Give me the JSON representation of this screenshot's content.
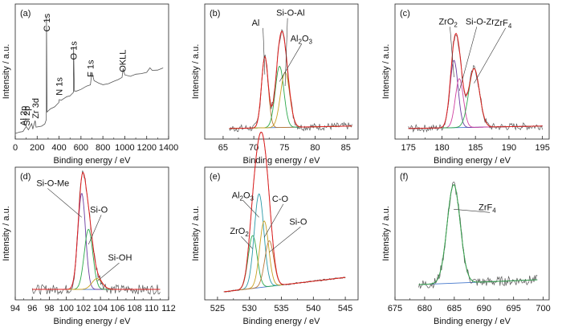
{
  "colors": {
    "axis": "#222222",
    "raw": "#555555",
    "envelope": "#e02020",
    "baseline": "#4477cc",
    "brown": "#b87838",
    "green": "#2aa84a",
    "olive": "#8a9a2a",
    "gold": "#c8a020",
    "purple": "#6a3aa0",
    "pink": "#d040a0",
    "teal": "#2a9aa8",
    "fit_green": "#3aa050"
  },
  "chart_data": [
    {
      "id": "a",
      "panel_label": "(a)",
      "type": "line",
      "xlabel": "Binding energy / eV",
      "ylabel": "Intensity / a.u.",
      "xlim": [
        0,
        1400
      ],
      "xticks": [
        "0",
        "200",
        "400",
        "600",
        "800",
        "1000",
        "1200",
        "1400"
      ],
      "yticks": [],
      "grid": false,
      "legend": "none",
      "series": [
        {
          "name": "",
          "style": "raw",
          "points": [
            [
              0,
              2
            ],
            [
              40,
              3
            ],
            [
              70,
              4
            ],
            [
              100,
              8
            ],
            [
              120,
              5
            ],
            [
              150,
              10
            ],
            [
              160,
              6
            ],
            [
              182,
              12
            ],
            [
              190,
              7
            ],
            [
              240,
              8
            ],
            [
              270,
              10
            ],
            [
              284,
              13
            ],
            [
              285,
              97
            ],
            [
              290,
              20
            ],
            [
              320,
              22
            ],
            [
              360,
              24
            ],
            [
              398,
              27
            ],
            [
              402,
              30
            ],
            [
              420,
              29
            ],
            [
              470,
              32
            ],
            [
              500,
              33
            ],
            [
              531,
              36
            ],
            [
              532,
              72
            ],
            [
              540,
              36
            ],
            [
              560,
              37
            ],
            [
              600,
              38
            ],
            [
              650,
              40
            ],
            [
              686,
              42
            ],
            [
              700,
              52
            ],
            [
              720,
              45
            ],
            [
              760,
              43
            ],
            [
              800,
              42
            ],
            [
              850,
              43
            ],
            [
              900,
              44
            ],
            [
              940,
              46
            ],
            [
              975,
              48
            ],
            [
              985,
              55
            ],
            [
              1000,
              50
            ],
            [
              1050,
              49
            ],
            [
              1100,
              50
            ],
            [
              1150,
              51
            ],
            [
              1200,
              52
            ],
            [
              1230,
              56
            ],
            [
              1250,
              53
            ],
            [
              1300,
              54
            ],
            [
              1350,
              55
            ]
          ]
        }
      ],
      "annotations": [
        {
          "text": "C 1s",
          "x": 285,
          "y": 85,
          "rotate": true
        },
        {
          "text": "O 1s",
          "x": 531,
          "y": 62,
          "rotate": true
        },
        {
          "text": "N 1s",
          "x": 400,
          "y": 33,
          "rotate": true
        },
        {
          "text": "F 1s",
          "x": 686,
          "y": 48,
          "rotate": true
        },
        {
          "text": "OKLL",
          "x": 980,
          "y": 52,
          "rotate": true
        },
        {
          "text": "Al 2p",
          "x": 74,
          "y": 8,
          "rotate": true
        },
        {
          "text": "Si 2p",
          "x": 102,
          "y": 8,
          "rotate": true
        },
        {
          "text": "Zr 3d",
          "x": 182,
          "y": 14,
          "rotate": true
        }
      ]
    },
    {
      "id": "b",
      "panel_label": "(b)",
      "type": "line",
      "xlabel": "Binding energy / eV",
      "ylabel": "Intensity / a.u.",
      "xlim": [
        62,
        87
      ],
      "xticks": [
        "65",
        "70",
        "75",
        "80",
        "85"
      ],
      "yticks": [],
      "grid": false,
      "legend": "none",
      "peaks": [
        {
          "name": "Al",
          "center": 71.8,
          "height": 58,
          "width": 0.55,
          "color": "#b87838"
        },
        {
          "name": "Al2O3",
          "center": 74.2,
          "height": 50,
          "width": 0.7,
          "color": "#2aa84a"
        },
        {
          "name": "Si-O-Al",
          "center": 75.1,
          "height": 45,
          "width": 0.75,
          "color": "#c8a020"
        }
      ],
      "background": {
        "x0": 66,
        "y0": 6,
        "x1": 86,
        "y1": 8
      },
      "noise": 3,
      "x_range": [
        66,
        86
      ],
      "annotations": [
        {
          "text": "Al",
          "x": 71.5,
          "y": 90,
          "sub": ""
        },
        {
          "text": "Si-O-Al",
          "x": 75.5,
          "y": 98,
          "sub": ""
        },
        {
          "text": "Al",
          "x": 77.8,
          "y": 77,
          "sub": "2",
          "rest": "O",
          "sub2": "3"
        }
      ]
    },
    {
      "id": "c",
      "panel_label": "(c)",
      "type": "line",
      "xlabel": "Binding energy / eV",
      "ylabel": "Intensity / a.u.",
      "xlim": [
        173,
        196
      ],
      "xticks": [
        "175",
        "180",
        "185",
        "190",
        "195"
      ],
      "yticks": [],
      "grid": false,
      "legend": "none",
      "peaks": [
        {
          "name": "ZrO2",
          "center": 181.8,
          "height": 55,
          "width": 0.6,
          "color": "#6a3aa0"
        },
        {
          "name": "Si-O-Zr",
          "center": 182.6,
          "height": 40,
          "width": 0.6,
          "color": "#d040a0"
        },
        {
          "name": "ZrF4",
          "center": 184.8,
          "height": 48,
          "width": 0.8,
          "color": "#2aa84a"
        }
      ],
      "background": {
        "x0": 175,
        "y0": 6,
        "x1": 195,
        "y1": 8
      },
      "noise": 3,
      "x_range": [
        175,
        195
      ],
      "annotations": [
        {
          "text": "ZrO",
          "x": 181.2,
          "y": 91,
          "sub": "2"
        },
        {
          "text": "Si-O-Zr",
          "x": 185.2,
          "y": 91,
          "sub": ""
        },
        {
          "text": "ZrF",
          "x": 189.5,
          "y": 90,
          "sub": "4"
        }
      ]
    },
    {
      "id": "d",
      "panel_label": "(d)",
      "type": "line",
      "xlabel": "Binding energy / eV",
      "ylabel": "Intensity / a.u.",
      "xlim": [
        94,
        112
      ],
      "xticks": [
        "94",
        "96",
        "98",
        "100",
        "102",
        "104",
        "106",
        "108",
        "110",
        "112"
      ],
      "yticks": [],
      "grid": false,
      "legend": "none",
      "peaks": [
        {
          "name": "Si-O-Me",
          "center": 101.8,
          "height": 80,
          "width": 0.45,
          "color": "#6a3aa0"
        },
        {
          "name": "Si-O",
          "center": 102.6,
          "height": 50,
          "width": 0.5,
          "color": "#2aa84a"
        },
        {
          "name": "Si-OH",
          "center": 103.6,
          "height": 9,
          "width": 0.6,
          "color": "#c8a020"
        }
      ],
      "background": {
        "x0": 96,
        "y0": 6,
        "x1": 111,
        "y1": 6
      },
      "noise": 4,
      "x_range": [
        96,
        111
      ],
      "annotations": [
        {
          "text": "Si-O-Me",
          "x": 97.8,
          "y": 92,
          "sub": ""
        },
        {
          "text": "Si-O",
          "x": 104.1,
          "y": 70,
          "sub": ""
        },
        {
          "text": "Si-OH",
          "x": 106.2,
          "y": 30,
          "sub": ""
        }
      ]
    },
    {
      "id": "e",
      "panel_label": "(e)",
      "type": "line",
      "xlabel": "Binding energy / eV",
      "ylabel": "Intensity / a.u.",
      "xlim": [
        523,
        547
      ],
      "xticks": [
        "525",
        "530",
        "535",
        "540",
        "545"
      ],
      "yticks": [],
      "grid": false,
      "legend": "none",
      "peaks": [
        {
          "name": "ZrO2",
          "center": 530.5,
          "height": 44,
          "width": 0.7,
          "color": "#2aa84a"
        },
        {
          "name": "Al2O3",
          "center": 531.5,
          "height": 78,
          "width": 0.75,
          "color": "#2a9aa8"
        },
        {
          "name": "C-O",
          "center": 532.3,
          "height": 55,
          "width": 0.7,
          "color": "#c8a020"
        },
        {
          "name": "Si-O",
          "center": 533.1,
          "height": 38,
          "width": 0.7,
          "color": "#b87838"
        }
      ],
      "background": {
        "x0": 526,
        "y0": 4,
        "x1": 545,
        "y1": 16
      },
      "noise": 0.6,
      "x_range": [
        526,
        545
      ],
      "annotations": [
        {
          "text": "Al",
          "x": 529,
          "y": 82,
          "sub": "2",
          "rest": "O",
          "sub2": "3"
        },
        {
          "text": "C-O",
          "x": 535.3,
          "y": 79,
          "sub": ""
        },
        {
          "text": "ZrO",
          "x": 528.7,
          "y": 52,
          "sub": "2"
        },
        {
          "text": "Si-O",
          "x": 538,
          "y": 60,
          "sub": ""
        }
      ]
    },
    {
      "id": "f",
      "panel_label": "(f)",
      "type": "line",
      "xlabel": "Binding energy / eV",
      "ylabel": "Intensity / a.u.",
      "xlim": [
        675,
        701
      ],
      "xticks": [
        "675",
        "680",
        "685",
        "690",
        "695",
        "700"
      ],
      "yticks": [],
      "grid": false,
      "legend": "none",
      "peaks": [
        {
          "name": "ZrF4",
          "center": 684.9,
          "height": 82,
          "width": 1.1,
          "color": "#3aa050"
        }
      ],
      "background": {
        "x0": 679,
        "y0": 10,
        "x1": 699,
        "y1": 14
      },
      "noise": 4,
      "x_range": [
        679,
        699
      ],
      "annotations": [
        {
          "text": "ZrF",
          "x": 691,
          "y": 72,
          "sub": "4"
        }
      ]
    }
  ]
}
